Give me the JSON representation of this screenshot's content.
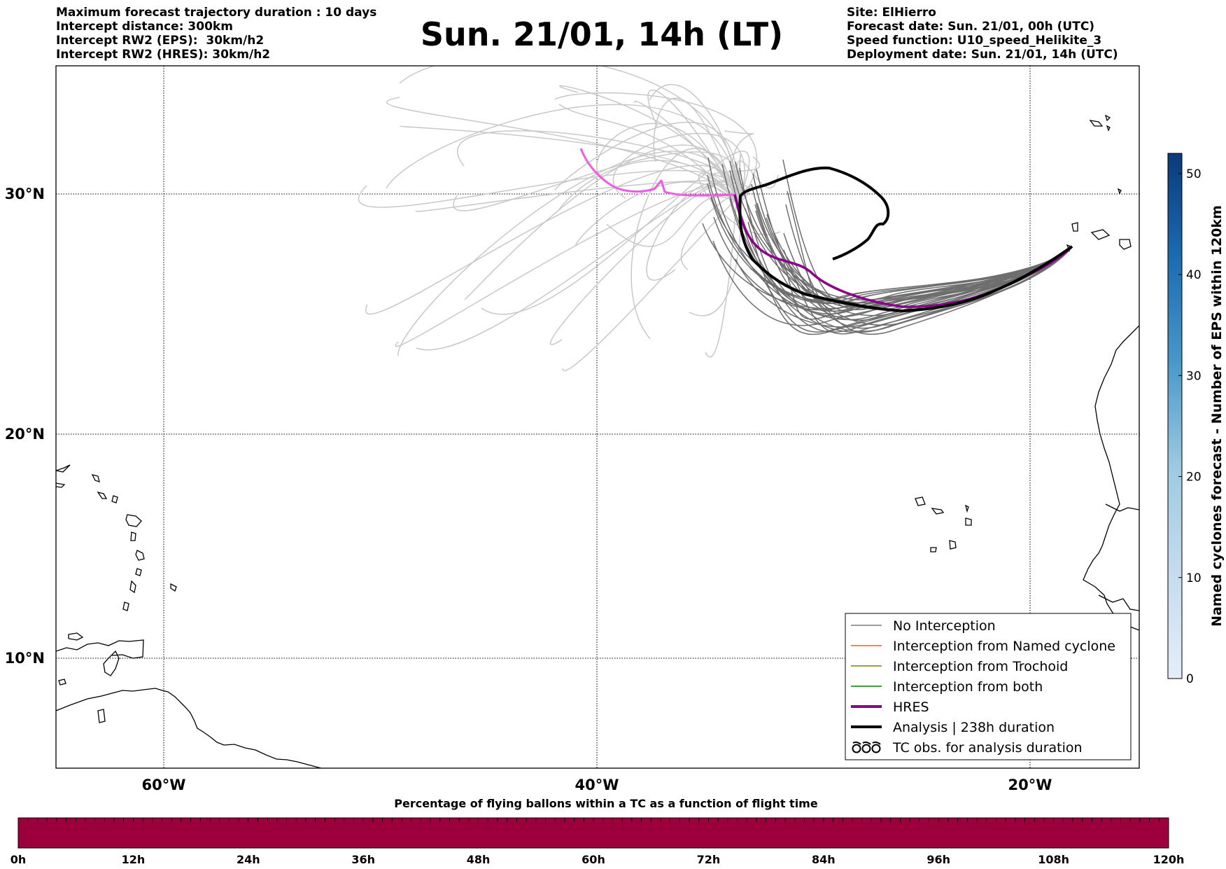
{
  "header": {
    "left_lines": [
      "Maximum forecast trajectory duration : 10 days",
      "Intercept distance: 300km",
      "Intercept RW2 (EPS):  30km/h2",
      "Intercept RW2 (HRES): 30km/h2"
    ],
    "title": "Sun. 21/01, 14h (LT)",
    "right_lines": [
      "Site: ElHierro",
      "Forecast date: Sun. 21/01, 00h (UTC)",
      "Speed function: U10_speed_Helikite_3",
      "Deployment date: Sun. 21/01, 14h (UTC)"
    ]
  },
  "map": {
    "lat_labels": [
      "30°N",
      "20°N",
      "10°N"
    ],
    "lon_labels": [
      "60°W",
      "40°W",
      "20°W"
    ],
    "lat_values": [
      30,
      20,
      10
    ],
    "lon_values": [
      -60,
      -40,
      -20
    ],
    "extent": {
      "lon_min": -65,
      "lon_max": -15,
      "lat_min": 5,
      "lat_max": 35.2
    },
    "colors": {
      "eps_light": "#c8c8c8",
      "eps_dark": "#6e6e6e",
      "hres_forecast": "#ee5ce6",
      "hres": "#8b008b",
      "analysis": "#000000",
      "named_cyclone": "#ff5a14",
      "trochoid": "#808000",
      "both": "#008000"
    }
  },
  "legend": {
    "items": [
      {
        "label": "No Interception",
        "symbol": "line",
        "color": "#7a7a7a",
        "width": 1.5
      },
      {
        "label": "Interception from Named cyclone",
        "symbol": "line",
        "color": "#ff5a14",
        "width": 1.5
      },
      {
        "label": "Interception from Trochoid",
        "symbol": "line",
        "color": "#808000",
        "width": 1.5
      },
      {
        "label": "Interception from both",
        "symbol": "line",
        "color": "#008000",
        "width": 1.5
      },
      {
        "label": "HRES",
        "symbol": "line",
        "color": "#8b008b",
        "width": 4
      },
      {
        "label": "Analysis | 238h duration",
        "symbol": "line",
        "color": "#000000",
        "width": 4
      },
      {
        "label": "TC obs. for analysis duration",
        "symbol": "tc",
        "color": "#000000",
        "width": 2
      }
    ]
  },
  "colorbar_right": {
    "label": "Named cyclones forecast - Number of EPS within 120km",
    "ticks": [
      "0",
      "10",
      "20",
      "30",
      "40",
      "50"
    ],
    "tick_values": [
      0,
      10,
      20,
      30,
      40,
      50
    ],
    "max": 52,
    "color_low": "#e4eef9",
    "color_high": "#0a3a7a"
  },
  "bottom_bar": {
    "title": "Percentage of flying ballons within a TC as a function of flight time",
    "ticks": [
      "0h",
      "12h",
      "24h",
      "36h",
      "48h",
      "60h",
      "72h",
      "84h",
      "96h",
      "108h",
      "120h"
    ],
    "fill_color": "#9b003d"
  }
}
